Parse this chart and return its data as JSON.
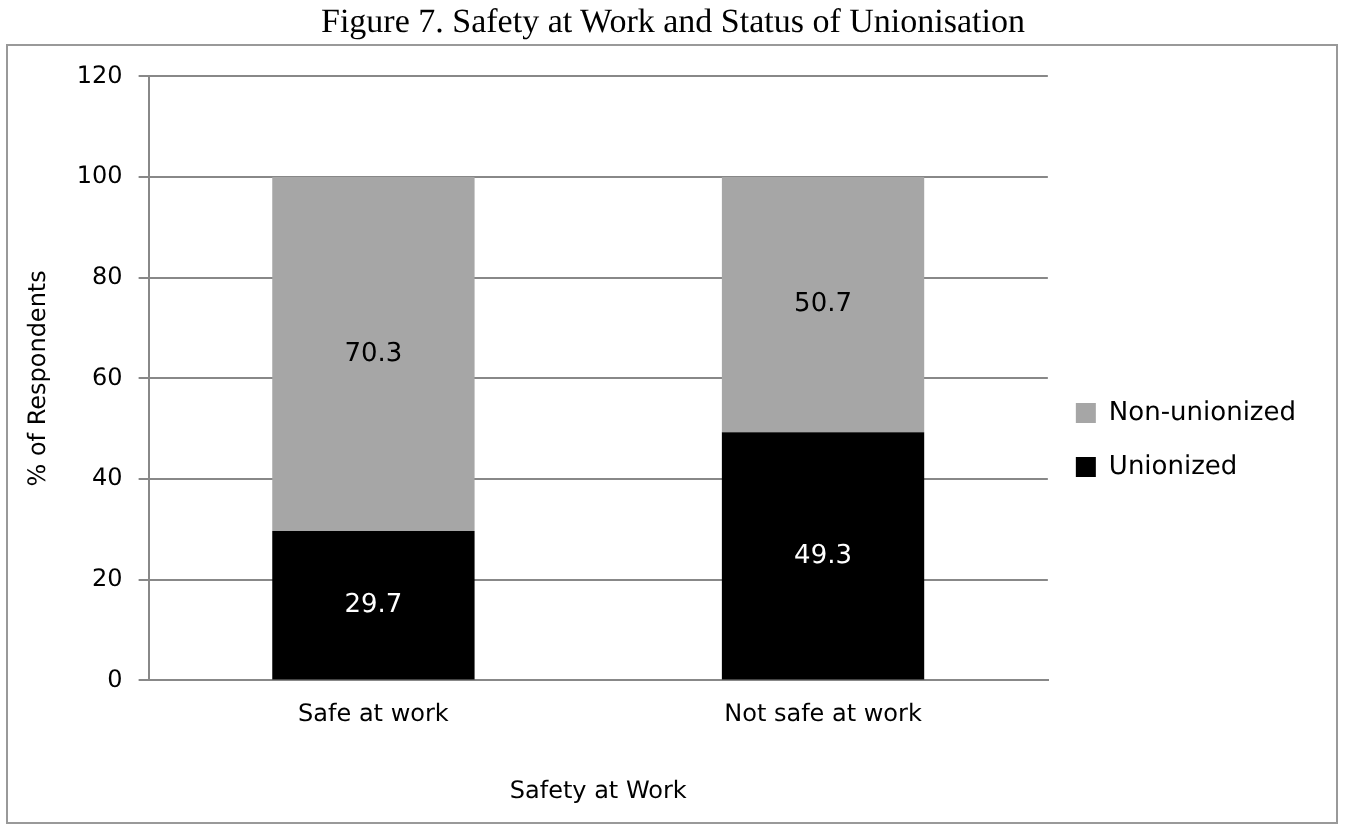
{
  "chart_data": {
    "type": "bar",
    "title": "Figure 7. Safety at Work and Status of Unionisation",
    "xlabel": "Safety at Work",
    "ylabel": "% of Respondents",
    "categories": [
      "Safe at work",
      "Not safe at work"
    ],
    "stacked": true,
    "series": [
      {
        "name": "Unionized",
        "color": "#000000",
        "values": [
          29.7,
          49.3
        ]
      },
      {
        "name": "Non-unionized",
        "color": "#a6a6a6",
        "values": [
          70.3,
          50.7
        ]
      }
    ],
    "ylim": [
      0,
      120
    ],
    "yticks": [
      0,
      20,
      40,
      60,
      80,
      100,
      120
    ],
    "grid": "y",
    "legend": "right",
    "data_labels": true
  }
}
